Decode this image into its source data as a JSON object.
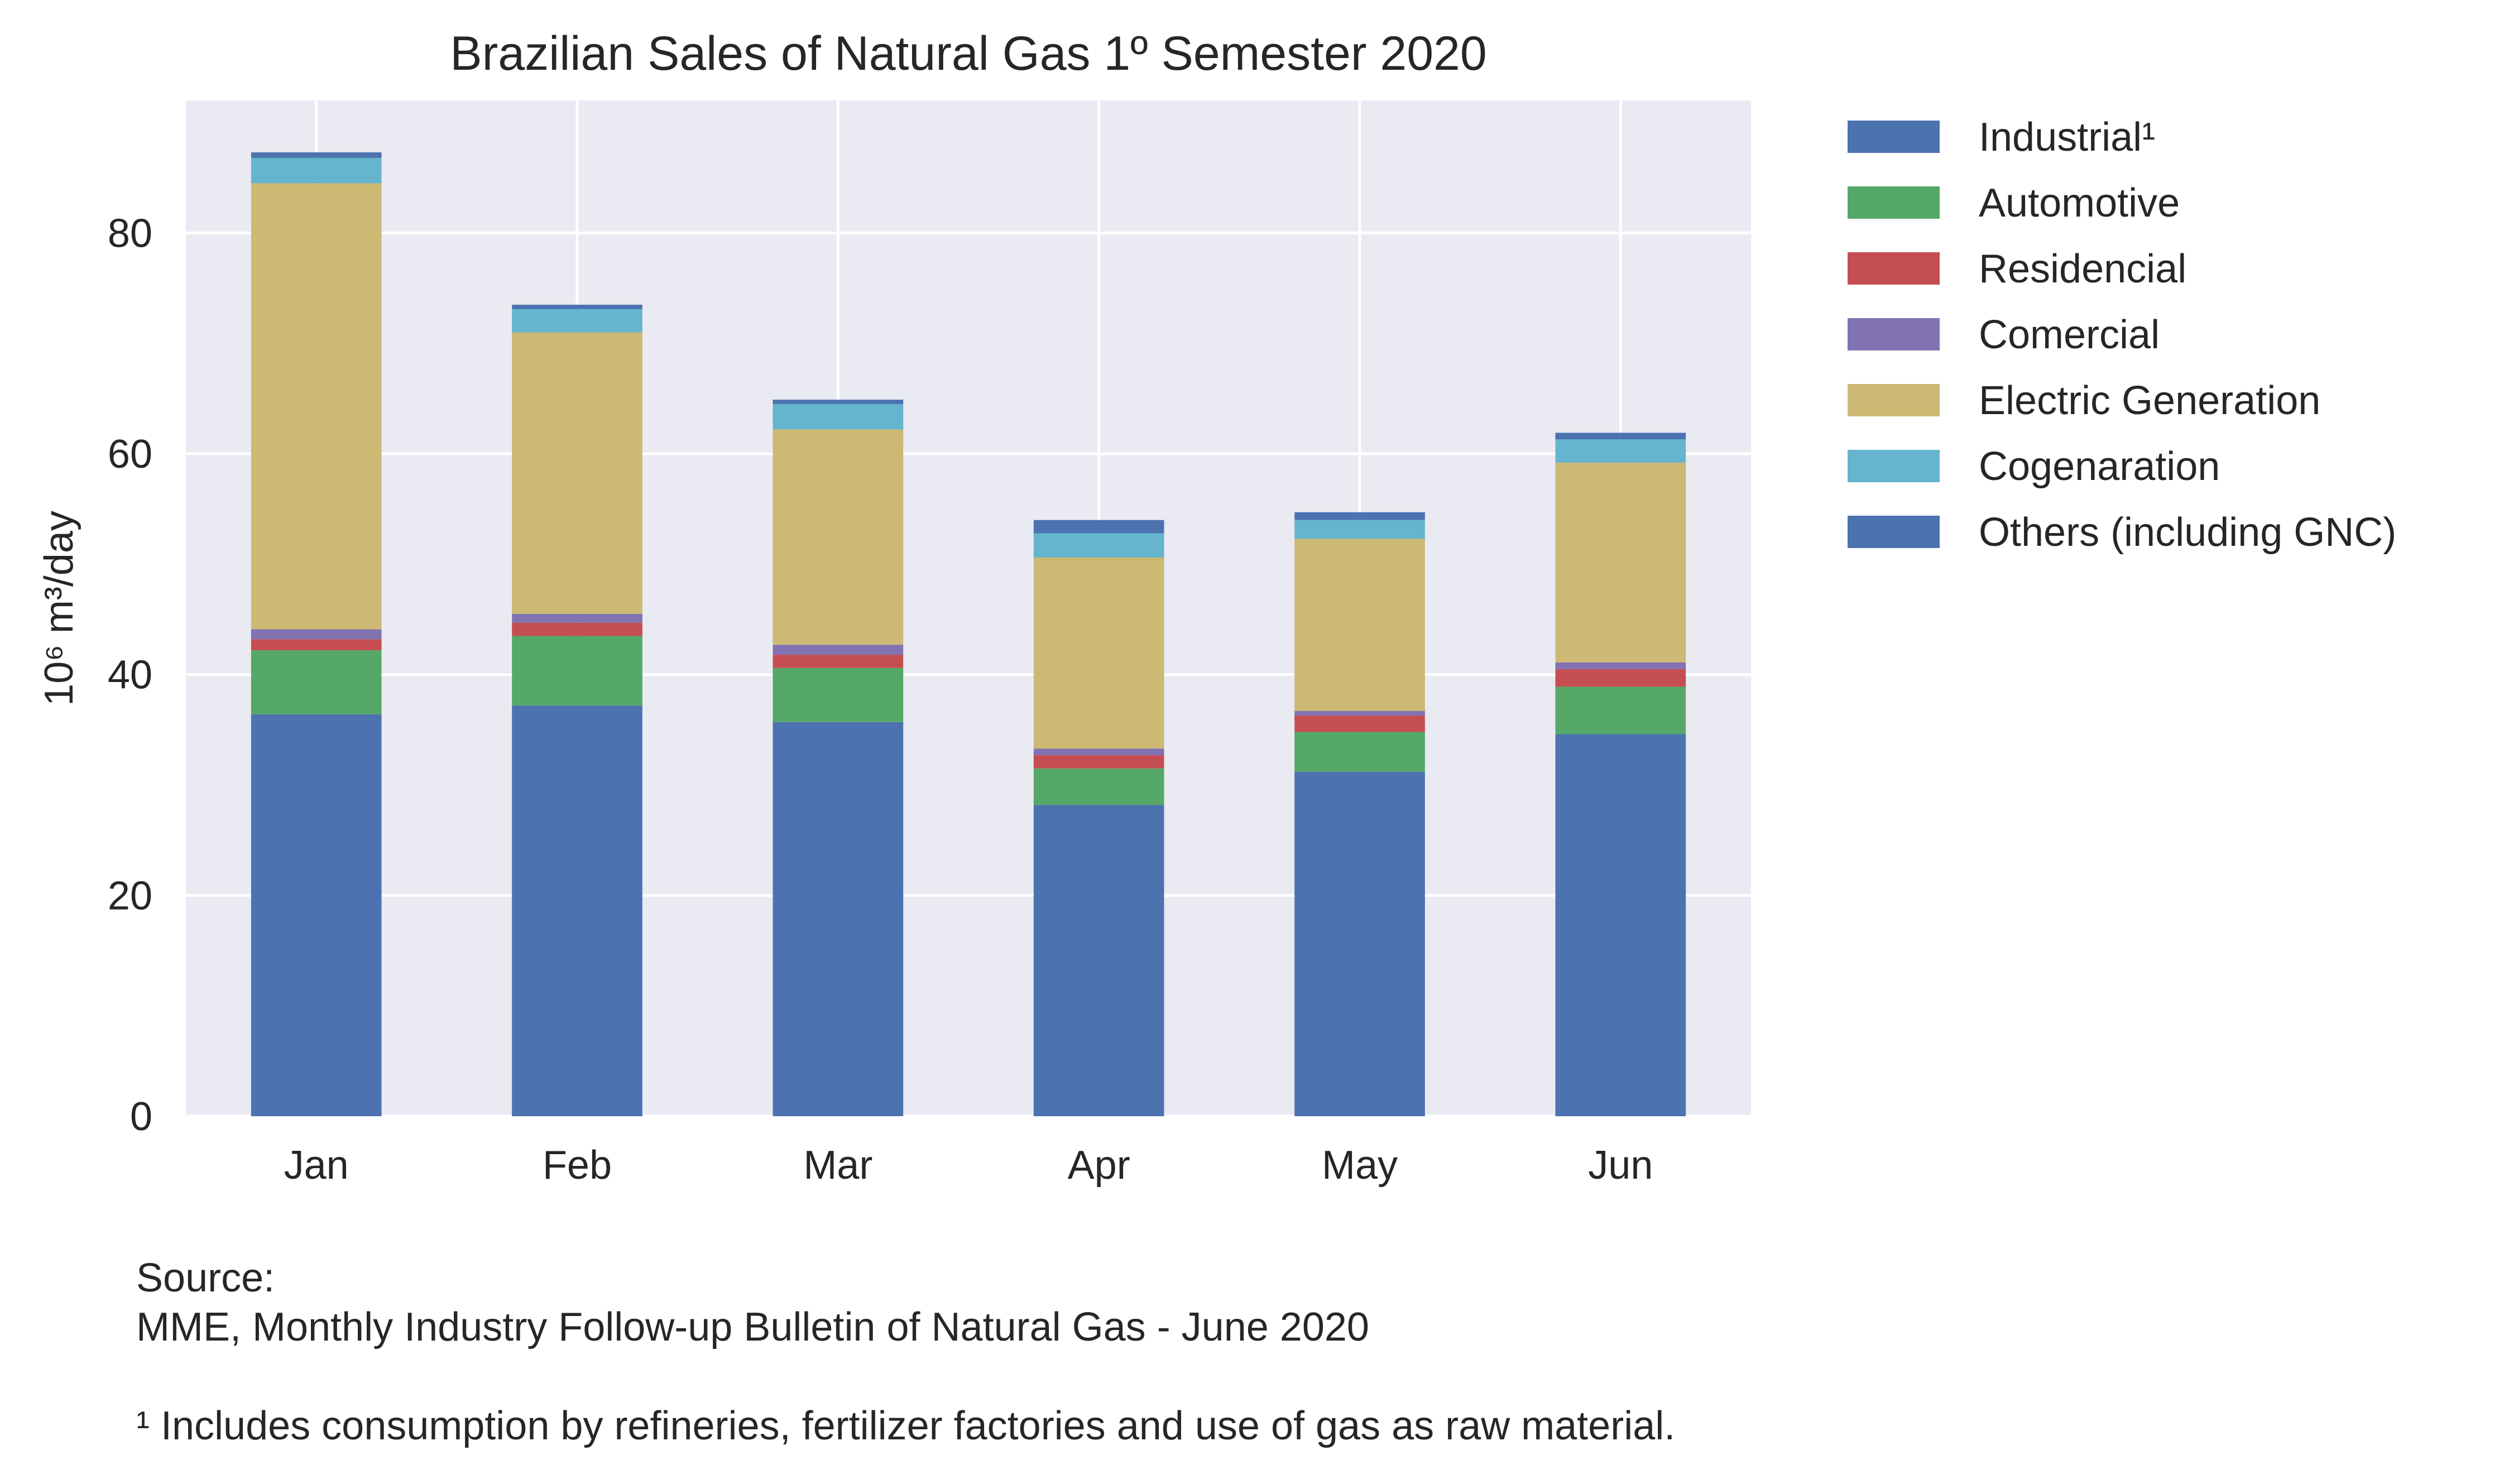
{
  "chart_data": {
    "type": "bar",
    "stacked": true,
    "title": "Brazilian Sales of Natural Gas 1º Semester 2020",
    "xlabel": "",
    "ylabel": "10⁶ m³/day",
    "ylim": [
      0,
      92
    ],
    "yticks": [
      0,
      20,
      40,
      60,
      80
    ],
    "grid": true,
    "legend_position": "outside-right-top",
    "categories": [
      "Jan",
      "Feb",
      "Mar",
      "Apr",
      "May",
      "Jun"
    ],
    "series": [
      {
        "name": "Industrial¹",
        "color": "#4c72b0",
        "values": [
          36.4,
          37.2,
          35.7,
          28.2,
          31.2,
          34.6
        ]
      },
      {
        "name": "Automotive",
        "color": "#55a868",
        "values": [
          5.8,
          6.3,
          4.9,
          3.3,
          3.6,
          4.3
        ]
      },
      {
        "name": "Residencial",
        "color": "#c44e52",
        "values": [
          1.0,
          1.2,
          1.2,
          1.2,
          1.5,
          1.6
        ]
      },
      {
        "name": "Comercial",
        "color": "#8172b2",
        "values": [
          0.9,
          0.8,
          0.9,
          0.6,
          0.4,
          0.6
        ]
      },
      {
        "name": "Electric Generation",
        "color": "#ccb974",
        "values": [
          40.4,
          25.5,
          19.5,
          17.3,
          15.6,
          18.1
        ]
      },
      {
        "name": "Cogenaration",
        "color": "#64b5cd",
        "values": [
          2.3,
          2.1,
          2.3,
          2.2,
          1.7,
          2.1
        ]
      },
      {
        "name": "Others (including GNC)",
        "color": "#4c72b0",
        "values": [
          0.5,
          0.4,
          0.4,
          1.2,
          0.7,
          0.6
        ]
      }
    ]
  },
  "footnotes": {
    "source_label": "Source:",
    "source_text": "MME, Monthly Industry Follow-up Bulletin of Natural Gas - June 2020",
    "footnote": "¹ Includes consumption by refineries, fertilizer factories and use of gas as raw material."
  }
}
